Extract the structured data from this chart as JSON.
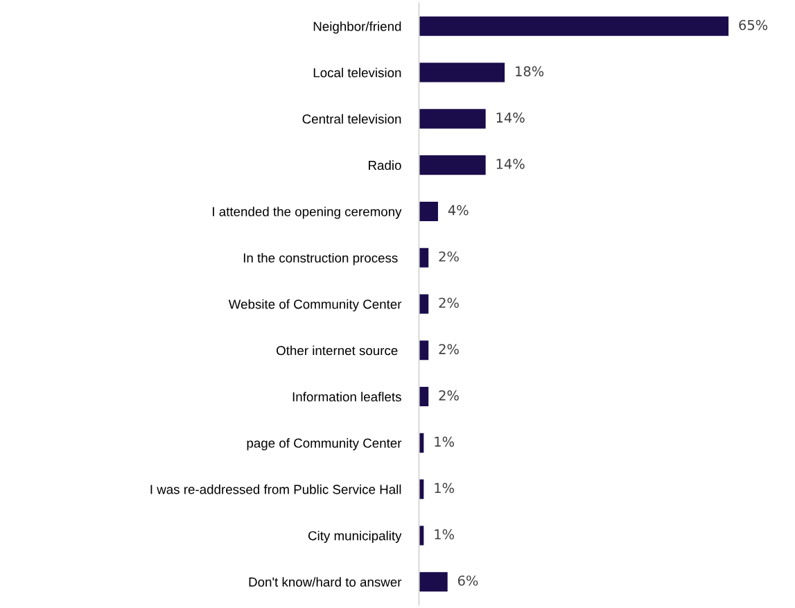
{
  "chart_data": {
    "type": "bar",
    "orientation": "horizontal",
    "categories": [
      "Neighbor/friend",
      "Local television",
      "Central television",
      "Radio",
      "I attended the opening ceremony",
      "In the construction process ",
      "Website of Community Center",
      "Other internet source ",
      "Information leaflets",
      "page of Community Center",
      "I was re-addressed from Public Service Hall",
      "City municipality",
      "Don't know/hard to answer"
    ],
    "values": [
      65,
      18,
      14,
      14,
      4,
      2,
      2,
      2,
      2,
      1,
      1,
      1,
      6
    ],
    "value_labels": [
      "65%",
      "18%",
      "14%",
      "14%",
      "4%",
      "2%",
      "2%",
      "2%",
      "2%",
      "1%",
      "1%",
      "1%",
      "6%"
    ],
    "color": "#1b0c4b",
    "grid": false,
    "legend": false
  }
}
